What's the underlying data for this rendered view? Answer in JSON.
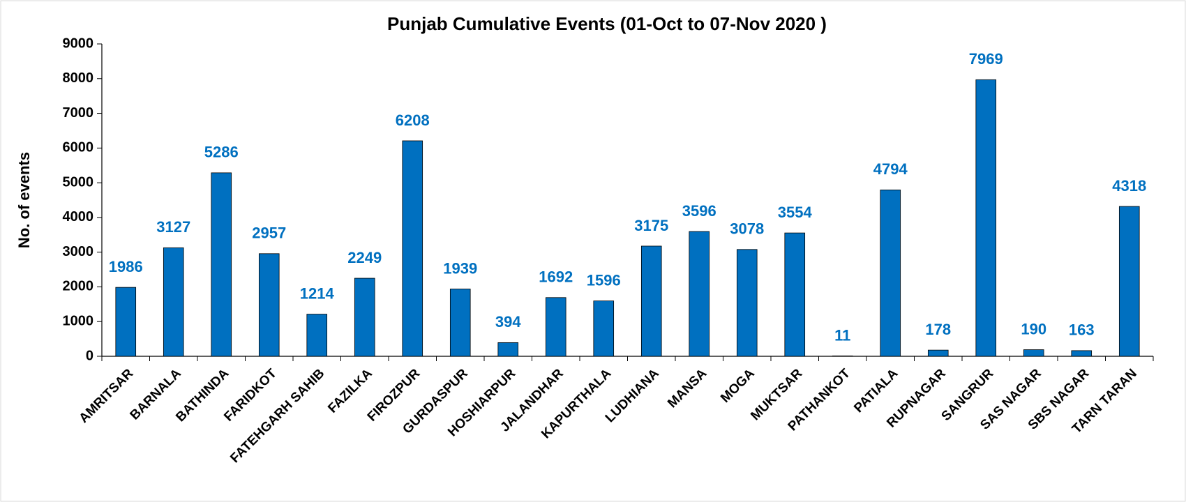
{
  "chart_data": {
    "type": "bar",
    "title": "Punjab Cumulative Events (01-Oct to 07-Nov 2020 )",
    "y_label": "No. of events",
    "categories": [
      "AMRITSAR",
      "BARNALA",
      "BATHINDA",
      "FARIDKOT",
      "FATEHGARH SAHIB",
      "FAZILKA",
      "FIROZPUR",
      "GURDASPUR",
      "HOSHIARPUR",
      "JALANDHAR",
      "KAPURTHALA",
      "LUDHIANA",
      "MANSA",
      "MOGA",
      "MUKTSAR",
      "PATHANKOT",
      "PATIALA",
      "RUPNAGAR",
      "SANGRUR",
      "SAS NAGAR",
      "SBS NAGAR",
      "TARN TARAN"
    ],
    "values": [
      1986,
      3127,
      5286,
      2957,
      1214,
      2249,
      6208,
      1939,
      394,
      1692,
      1596,
      3175,
      3596,
      3078,
      3554,
      11,
      4794,
      178,
      7969,
      190,
      163,
      4318
    ],
    "color": "#0070c0",
    "ylim": [
      0,
      9000
    ],
    "yticks": [
      0,
      1000,
      2000,
      3000,
      4000,
      5000,
      6000,
      7000,
      8000,
      9000
    ],
    "grid": false
  }
}
